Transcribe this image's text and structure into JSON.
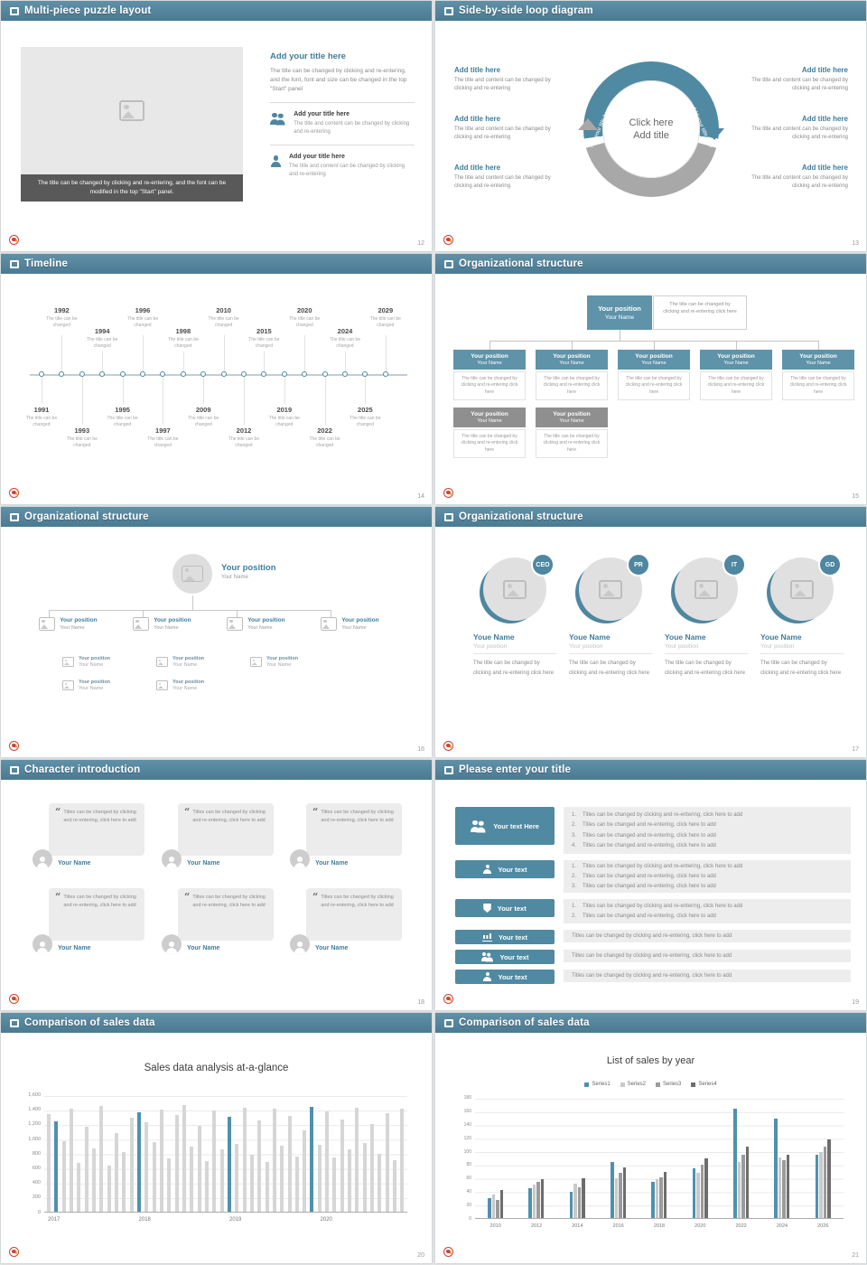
{
  "theme": {
    "header_bg": "#4a7b92",
    "accent_text": "#3f7e9b",
    "teal_fill": "#5089a2",
    "gray_fill": "#8f8f8f"
  },
  "slides": [
    {
      "header": "Multi-piece puzzle layout",
      "page": "12",
      "image_caption": "The title can be changed by clicking and re-entering, and the font can be modified in the top \"Start\" panel.",
      "section_title": "Add your title here",
      "section_body": "The title can be changed by clicking and re-entering, and the font, font and size can be changed in the top \"Start\" panel",
      "items": [
        {
          "icon": "people-icon",
          "title": "Add your title here",
          "text": "The title and content can be changed by clicking and re-entering"
        },
        {
          "icon": "person-icon",
          "title": "Add your title here",
          "text": "The title and content can be changed by clicking and re-entering"
        }
      ]
    },
    {
      "header": "Side-by-side loop diagram",
      "page": "13",
      "center_line1": "Click here",
      "center_line2": "Add title",
      "arc_labels": [
        "Add your title here",
        "Add your title here"
      ],
      "left_items": [
        {
          "title": "Add title here",
          "text": "The title and content can be changed by clicking and re-entering"
        },
        {
          "title": "Add title here",
          "text": "The title and content can be changed by clicking and re-entering"
        },
        {
          "title": "Add title here",
          "text": "The title and content can be changed by clicking and re-entering"
        }
      ],
      "right_items": [
        {
          "title": "Add title here",
          "text": "The title and content can be changed by clicking and re-entering"
        },
        {
          "title": "Add title here",
          "text": "The title and content can be changed by clicking and re-entering"
        },
        {
          "title": "Add title here",
          "text": "The title and content can be changed by clicking and re-entering"
        }
      ]
    },
    {
      "header": "Timeline",
      "page": "14",
      "event_caption": "The title can be changed",
      "events": [
        {
          "year": "1991",
          "pos": "b1"
        },
        {
          "year": "1992",
          "pos": "t1"
        },
        {
          "year": "1993",
          "pos": "b2"
        },
        {
          "year": "1994",
          "pos": "t2"
        },
        {
          "year": "1995",
          "pos": "b1"
        },
        {
          "year": "1996",
          "pos": "t1"
        },
        {
          "year": "1997",
          "pos": "b2"
        },
        {
          "year": "1998",
          "pos": "t2"
        },
        {
          "year": "2009",
          "pos": "b1"
        },
        {
          "year": "2010",
          "pos": "t1"
        },
        {
          "year": "2012",
          "pos": "b2"
        },
        {
          "year": "2015",
          "pos": "t2"
        },
        {
          "year": "2019",
          "pos": "b1"
        },
        {
          "year": "2020",
          "pos": "t1"
        },
        {
          "year": "2022",
          "pos": "b2"
        },
        {
          "year": "2024",
          "pos": "t2"
        },
        {
          "year": "2025",
          "pos": "b1"
        },
        {
          "year": "2029",
          "pos": "t1"
        }
      ]
    },
    {
      "header": "Organizational structure",
      "page": "15",
      "root": {
        "position": "Your position",
        "name": "Your Name"
      },
      "root_note": "The title can be changed by clicking and re-entering click here",
      "box_note": "The title can be changed by clicking and re-entering click here",
      "row1": [
        {
          "position": "Your position",
          "name": "Your Name"
        },
        {
          "position": "Your position",
          "name": "Your Name"
        },
        {
          "position": "Your position",
          "name": "Your Name"
        },
        {
          "position": "Your position",
          "name": "Your Name"
        },
        {
          "position": "Your position",
          "name": "Your Name"
        }
      ],
      "row2": [
        {
          "position": "Your position",
          "name": "Your Name"
        },
        {
          "position": "Your position",
          "name": "Your Name"
        }
      ]
    },
    {
      "header": "Organizational structure",
      "page": "16",
      "root": {
        "position": "Your position",
        "name": "Your Name"
      },
      "branches": [
        {
          "position": "Your position",
          "name": "Your Name",
          "subs": [
            {
              "position": "Your position",
              "name": "Your Name"
            },
            {
              "position": "Your position",
              "name": "Your Name"
            }
          ]
        },
        {
          "position": "Your position",
          "name": "Your Name",
          "subs": [
            {
              "position": "Your position",
              "name": "Your Name"
            },
            {
              "position": "Your position",
              "name": "Your Name"
            }
          ]
        },
        {
          "position": "Your position",
          "name": "Your Name",
          "subs": [
            {
              "position": "Your position",
              "name": "Your Name"
            }
          ]
        },
        {
          "position": "Your position",
          "name": "Your Name",
          "subs": []
        }
      ]
    },
    {
      "header": "Organizational structure",
      "page": "17",
      "members": [
        {
          "badge": "CEO",
          "name": "Youe Name",
          "position": "Your position",
          "text": "The title can be changed by clicking and re-entering click here"
        },
        {
          "badge": "PR",
          "name": "Youe Name",
          "position": "Your position",
          "text": "The title can be changed by clicking and re-entering click here"
        },
        {
          "badge": "IT",
          "name": "Youe Name",
          "position": "Your position",
          "text": "The title can be changed by clicking and re-entering click here"
        },
        {
          "badge": "GD",
          "name": "Youe Name",
          "position": "Your position",
          "text": "The title can be changed by clicking and re-entering click here"
        }
      ]
    },
    {
      "header": "Character introduction",
      "page": "18",
      "quote_mark": "“",
      "cards": [
        {
          "quote": "Titles can be changed by clicking and re-entering, click here to add",
          "name": "Your Name"
        },
        {
          "quote": "Titles can be changed by clicking and re-entering, click here to add",
          "name": "Your Name"
        },
        {
          "quote": "Titles can be changed by clicking and re-entering, click here to add",
          "name": "Your Name"
        },
        {
          "quote": "Titles can be changed by clicking and re-entering, click here to add",
          "name": "Your Name"
        },
        {
          "quote": "Titles can be changed by clicking and re-entering, click here to add",
          "name": "Your Name"
        },
        {
          "quote": "Titles can be changed by clicking and re-entering, click here to add",
          "name": "Your Name"
        }
      ]
    },
    {
      "header": "Please enter your title",
      "page": "19",
      "buttons": [
        {
          "label": "Your text Here",
          "icon": "people-icon"
        },
        {
          "label": "Your text",
          "icon": "person-icon"
        },
        {
          "label": "Your text",
          "icon": "shield-icon"
        },
        {
          "label": "Your text",
          "icon": "bar-chart-icon"
        },
        {
          "label": "Your text",
          "icon": "people-icon"
        },
        {
          "label": "Your text",
          "icon": "person-icon"
        }
      ],
      "blocks": [
        {
          "items": [
            {
              "num": "1.",
              "text": "Titles can be changed by clicking and re-entering, click here to add"
            },
            {
              "num": "2.",
              "text": "Titles can be changed and re-entering, click here to add"
            },
            {
              "num": "3.",
              "text": "Titles can be changed and re-entering, click here to add"
            },
            {
              "num": "4.",
              "text": "Titles can be changed and re-entering, click here to add"
            }
          ]
        },
        {
          "items": [
            {
              "num": "1.",
              "text": "Titles can be changed by clicking and re-entering, click here to add"
            },
            {
              "num": "2.",
              "text": "Titles can be changed and re-entering, click here to add"
            },
            {
              "num": "3.",
              "text": "Titles can be changed and re-entering, click here to add"
            }
          ]
        },
        {
          "items": [
            {
              "num": "1.",
              "text": "Titles can be changed by clicking and re-entering, click here to add"
            },
            {
              "num": "2.",
              "text": "Titles can be changed and re-entering, click here to add"
            }
          ]
        },
        {
          "items": [
            {
              "num": "",
              "text": "Titles can be changed by clicking and re-entering, click here to add"
            }
          ]
        },
        {
          "items": [
            {
              "num": "",
              "text": "Titles can be changed by clicking and re-entering, click here to add"
            }
          ]
        },
        {
          "items": [
            {
              "num": "",
              "text": "Titles can be changed by clicking and re-entering, click here to add"
            }
          ]
        }
      ]
    },
    {
      "header": "Comparison of sales data",
      "page": "20",
      "chart": {
        "type": "bar",
        "title": "Sales data analysis at-a-glance",
        "groups": [
          "2017",
          "2018",
          "2019",
          "2020"
        ],
        "values": [
          1350,
          1250,
          980,
          1420,
          680,
          1180,
          880,
          1460,
          640,
          1090,
          830,
          1300,
          1370,
          1240,
          960,
          1410,
          740,
          1340,
          1470,
          900,
          1190,
          700,
          1400,
          860,
          1310,
          940,
          1440,
          790,
          1260,
          690,
          1430,
          910,
          1330,
          760,
          1120,
          1450,
          920,
          1390,
          750,
          1280,
          860,
          1440,
          950,
          1210,
          800,
          1360,
          710,
          1430
        ],
        "bar_color": "#d6d6d6",
        "highlight_color": "#4f91ad",
        "highlight_indices": [
          1,
          12,
          24,
          35
        ],
        "ylim": [
          0,
          1600
        ],
        "yticks": [
          "1,600",
          "1,400",
          "1,200",
          "1,000",
          "800",
          "600",
          "400",
          "200",
          "0"
        ]
      }
    },
    {
      "header": "Comparison of sales data",
      "page": "21",
      "chart": {
        "type": "grouped-bar",
        "title": "List of sales by year",
        "categories": [
          "2010",
          "2012",
          "2014",
          "2016",
          "2018",
          "2020",
          "2022",
          "2024",
          "2026"
        ],
        "series": [
          {
            "name": "Series1",
            "color": "#4f91ad",
            "values": [
              30,
              45,
              40,
              85,
              55,
              75,
              165,
              150,
              95
            ]
          },
          {
            "name": "Series2",
            "color": "#c9c9c9",
            "values": [
              35,
              50,
              52,
              60,
              58,
              68,
              85,
              92,
              100
            ]
          },
          {
            "name": "Series3",
            "color": "#9b9b9b",
            "values": [
              27,
              54,
              47,
              68,
              62,
              80,
              95,
              87,
              108
            ]
          },
          {
            "name": "Series4",
            "color": "#6d6d6d",
            "values": [
              42,
              58,
              60,
              76,
              70,
              90,
              108,
              96,
              118
            ]
          }
        ],
        "ylim": [
          0,
          180
        ],
        "yticks": [
          "180",
          "160",
          "140",
          "120",
          "100",
          "80",
          "60",
          "40",
          "20",
          "0"
        ]
      }
    }
  ]
}
